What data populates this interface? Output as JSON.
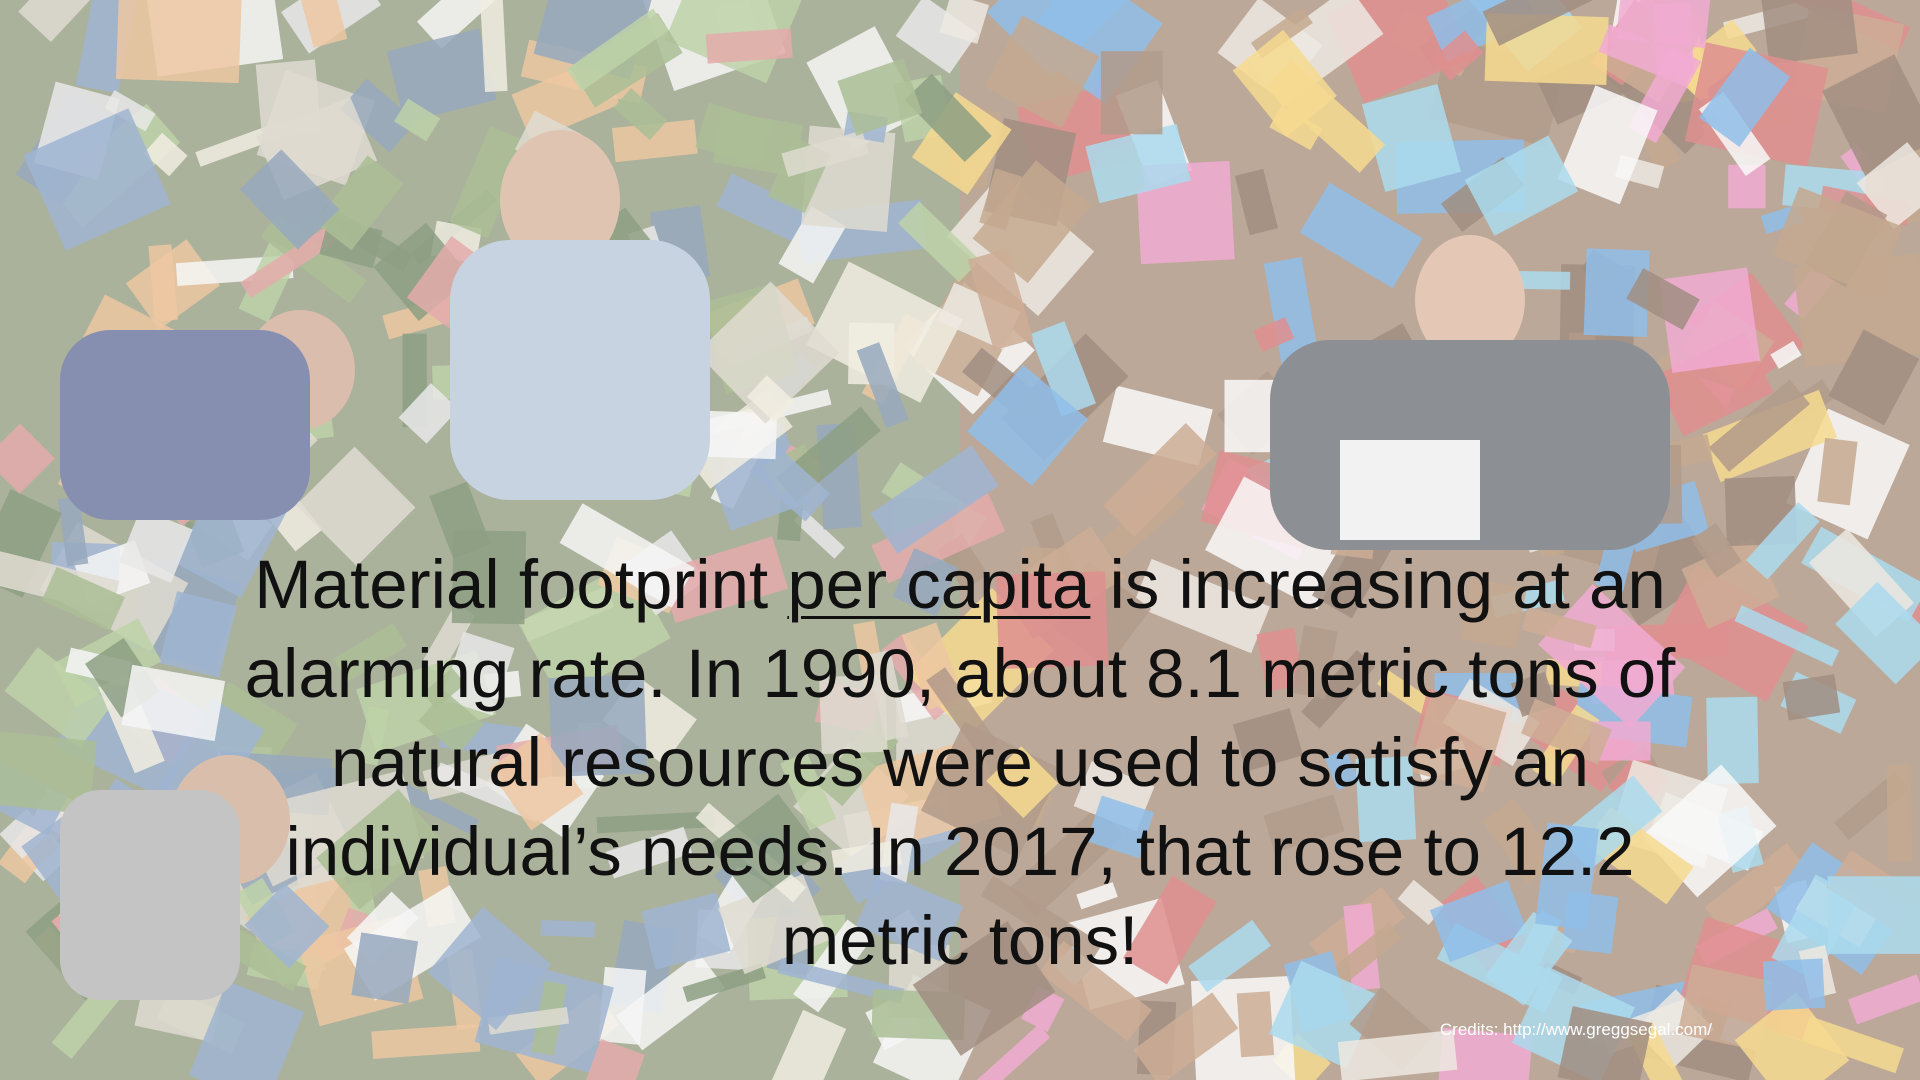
{
  "slide": {
    "message": {
      "before": "Material footprint ",
      "underlined": "per capita",
      "after": " is increasing at an alarming rate. In 1990, about 8.1 metric tons of natural resources were used to satisfy an individual’s needs. In 2017, that rose to 12.2 metric tons!"
    },
    "credits": "Credits: http://www.greggsegal.com/"
  }
}
